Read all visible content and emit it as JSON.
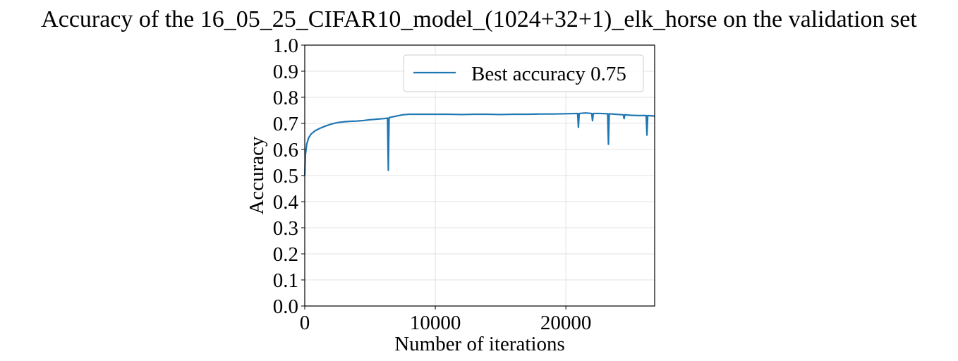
{
  "chart_data": {
    "type": "line",
    "title": "Accuracy of the 16_05_25_CIFAR10_model_(1024+32+1)_elk_horse on the validation set",
    "xlabel": "Number of iterations",
    "ylabel": "Accuracy",
    "xlim": [
      0,
      26800
    ],
    "ylim": [
      0.0,
      1.0
    ],
    "xticks": [
      0,
      10000,
      20000
    ],
    "xtick_labels": [
      "0",
      "10000",
      "20000"
    ],
    "yticks": [
      0.0,
      0.1,
      0.2,
      0.3,
      0.4,
      0.5,
      0.6,
      0.7,
      0.8,
      0.9,
      1.0
    ],
    "ytick_labels": [
      "0.0",
      "0.1",
      "0.2",
      "0.3",
      "0.4",
      "0.5",
      "0.6",
      "0.7",
      "0.8",
      "0.9",
      "1.0"
    ],
    "grid": true,
    "legend_position": "top-right",
    "series": [
      {
        "name": "Best accuracy 0.75",
        "color": "#1f77b4",
        "x": [
          0,
          50,
          150,
          300,
          500,
          800,
          1200,
          1600,
          2000,
          2500,
          3000,
          3500,
          4000,
          4500,
          5000,
          5500,
          6000,
          6340,
          6400,
          6460,
          7000,
          7500,
          8000,
          9000,
          10000,
          11000,
          12000,
          13000,
          14000,
          15000,
          16000,
          17000,
          18000,
          19000,
          20000,
          20900,
          20960,
          21020,
          21500,
          21980,
          22040,
          22100,
          22600,
          23200,
          23260,
          23320,
          23800,
          24400,
          24460,
          24520,
          25000,
          25500,
          26150,
          26210,
          26270,
          26800
        ],
        "y": [
          0.5,
          0.58,
          0.62,
          0.645,
          0.66,
          0.672,
          0.682,
          0.69,
          0.697,
          0.703,
          0.706,
          0.708,
          0.709,
          0.711,
          0.714,
          0.716,
          0.718,
          0.72,
          0.52,
          0.722,
          0.728,
          0.733,
          0.735,
          0.735,
          0.735,
          0.735,
          0.734,
          0.735,
          0.735,
          0.734,
          0.735,
          0.735,
          0.736,
          0.736,
          0.737,
          0.738,
          0.685,
          0.738,
          0.74,
          0.738,
          0.71,
          0.738,
          0.738,
          0.737,
          0.62,
          0.737,
          0.735,
          0.733,
          0.718,
          0.733,
          0.731,
          0.73,
          0.73,
          0.655,
          0.73,
          0.728
        ]
      }
    ]
  }
}
